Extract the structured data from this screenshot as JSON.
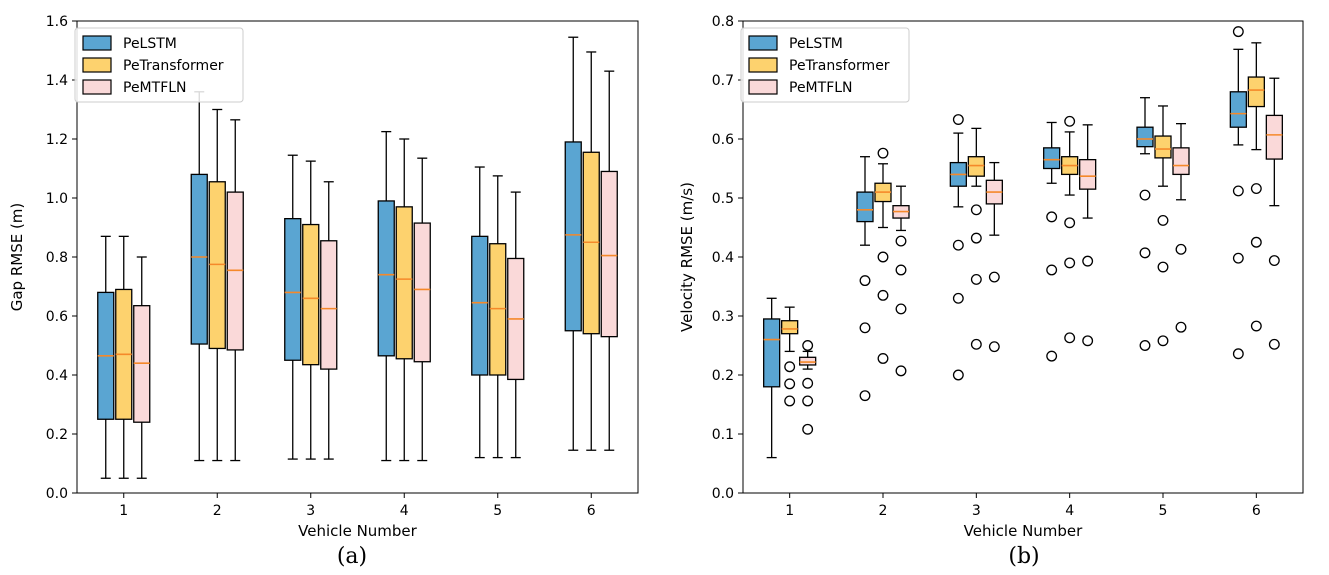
{
  "chart_data": [
    {
      "type": "box",
      "caption": "(a)",
      "xlabel": "Vehicle Number",
      "ylabel": "Gap RMSE (m)",
      "ylim": [
        0,
        1.6
      ],
      "yticks": [
        "0.0",
        "0.2",
        "0.4",
        "0.6",
        "0.8",
        "1.0",
        "1.2",
        "1.4",
        "1.6"
      ],
      "categories": [
        "1",
        "2",
        "3",
        "4",
        "5",
        "6"
      ],
      "legend": {
        "position": "top-left",
        "entries": [
          "PeLSTM",
          "PeTransformer",
          "PeMTFLN"
        ]
      },
      "series": [
        {
          "name": "PeLSTM",
          "color": "#5aa5d2",
          "boxes": [
            {
              "whislo": 0.05,
              "q1": 0.25,
              "med": 0.465,
              "q3": 0.68,
              "whishi": 0.87,
              "fliers": []
            },
            {
              "whislo": 0.11,
              "q1": 0.505,
              "med": 0.8,
              "q3": 1.08,
              "whishi": 1.36,
              "fliers": []
            },
            {
              "whislo": 0.115,
              "q1": 0.45,
              "med": 0.68,
              "q3": 0.93,
              "whishi": 1.145,
              "fliers": []
            },
            {
              "whislo": 0.11,
              "q1": 0.465,
              "med": 0.74,
              "q3": 0.99,
              "whishi": 1.225,
              "fliers": []
            },
            {
              "whislo": 0.12,
              "q1": 0.4,
              "med": 0.645,
              "q3": 0.87,
              "whishi": 1.105,
              "fliers": []
            },
            {
              "whislo": 0.145,
              "q1": 0.55,
              "med": 0.875,
              "q3": 1.19,
              "whishi": 1.545,
              "fliers": []
            }
          ]
        },
        {
          "name": "PeTransformer",
          "color": "#fdd26e",
          "boxes": [
            {
              "whislo": 0.05,
              "q1": 0.25,
              "med": 0.47,
              "q3": 0.69,
              "whishi": 0.87,
              "fliers": []
            },
            {
              "whislo": 0.11,
              "q1": 0.49,
              "med": 0.775,
              "q3": 1.055,
              "whishi": 1.3,
              "fliers": []
            },
            {
              "whislo": 0.115,
              "q1": 0.435,
              "med": 0.66,
              "q3": 0.91,
              "whishi": 1.125,
              "fliers": []
            },
            {
              "whislo": 0.11,
              "q1": 0.455,
              "med": 0.725,
              "q3": 0.97,
              "whishi": 1.2,
              "fliers": []
            },
            {
              "whislo": 0.12,
              "q1": 0.4,
              "med": 0.625,
              "q3": 0.845,
              "whishi": 1.075,
              "fliers": []
            },
            {
              "whislo": 0.145,
              "q1": 0.54,
              "med": 0.85,
              "q3": 1.155,
              "whishi": 1.495,
              "fliers": []
            }
          ]
        },
        {
          "name": "PeMTFLN",
          "color": "#fad9d9",
          "boxes": [
            {
              "whislo": 0.05,
              "q1": 0.24,
              "med": 0.44,
              "q3": 0.635,
              "whishi": 0.8,
              "fliers": []
            },
            {
              "whislo": 0.11,
              "q1": 0.485,
              "med": 0.755,
              "q3": 1.02,
              "whishi": 1.265,
              "fliers": []
            },
            {
              "whislo": 0.115,
              "q1": 0.42,
              "med": 0.625,
              "q3": 0.855,
              "whishi": 1.055,
              "fliers": []
            },
            {
              "whislo": 0.11,
              "q1": 0.445,
              "med": 0.69,
              "q3": 0.915,
              "whishi": 1.135,
              "fliers": []
            },
            {
              "whislo": 0.12,
              "q1": 0.385,
              "med": 0.59,
              "q3": 0.795,
              "whishi": 1.02,
              "fliers": []
            },
            {
              "whislo": 0.145,
              "q1": 0.53,
              "med": 0.805,
              "q3": 1.09,
              "whishi": 1.43,
              "fliers": []
            }
          ]
        }
      ]
    },
    {
      "type": "box",
      "caption": "(b)",
      "xlabel": "Vehicle Number",
      "ylabel": "Velocity RMSE (m/s)",
      "ylim": [
        0,
        0.8
      ],
      "yticks": [
        "0.0",
        "0.1",
        "0.2",
        "0.3",
        "0.4",
        "0.5",
        "0.6",
        "0.7",
        "0.8"
      ],
      "categories": [
        "1",
        "2",
        "3",
        "4",
        "5",
        "6"
      ],
      "legend": {
        "position": "top-left",
        "entries": [
          "PeLSTM",
          "PeTransformer",
          "PeMTFLN"
        ]
      },
      "series": [
        {
          "name": "PeLSTM",
          "color": "#5aa5d2",
          "boxes": [
            {
              "whislo": 0.06,
              "q1": 0.18,
              "med": 0.26,
              "q3": 0.295,
              "whishi": 0.33,
              "fliers": []
            },
            {
              "whislo": 0.42,
              "q1": 0.46,
              "med": 0.48,
              "q3": 0.51,
              "whishi": 0.57,
              "fliers": [
                0.36,
                0.28,
                0.165
              ]
            },
            {
              "whislo": 0.485,
              "q1": 0.52,
              "med": 0.54,
              "q3": 0.56,
              "whishi": 0.61,
              "fliers": [
                0.633,
                0.42,
                0.33,
                0.2
              ]
            },
            {
              "whislo": 0.525,
              "q1": 0.55,
              "med": 0.565,
              "q3": 0.585,
              "whishi": 0.628,
              "fliers": [
                0.468,
                0.378,
                0.232
              ]
            },
            {
              "whislo": 0.575,
              "q1": 0.587,
              "med": 0.6,
              "q3": 0.62,
              "whishi": 0.67,
              "fliers": [
                0.505,
                0.407,
                0.25
              ]
            },
            {
              "whislo": 0.59,
              "q1": 0.62,
              "med": 0.643,
              "q3": 0.68,
              "whishi": 0.752,
              "fliers": [
                0.782,
                0.512,
                0.398,
                0.236
              ]
            }
          ]
        },
        {
          "name": "PeTransformer",
          "color": "#fdd26e",
          "boxes": [
            {
              "whislo": 0.24,
              "q1": 0.27,
              "med": 0.278,
              "q3": 0.292,
              "whishi": 0.315,
              "fliers": [
                0.214,
                0.185,
                0.156
              ]
            },
            {
              "whislo": 0.45,
              "q1": 0.494,
              "med": 0.51,
              "q3": 0.525,
              "whishi": 0.558,
              "fliers": [
                0.576,
                0.4,
                0.335,
                0.228
              ]
            },
            {
              "whislo": 0.52,
              "q1": 0.537,
              "med": 0.555,
              "q3": 0.57,
              "whishi": 0.618,
              "fliers": [
                0.48,
                0.432,
                0.362,
                0.252
              ]
            },
            {
              "whislo": 0.505,
              "q1": 0.54,
              "med": 0.555,
              "q3": 0.57,
              "whishi": 0.612,
              "fliers": [
                0.63,
                0.458,
                0.39,
                0.263
              ]
            },
            {
              "whislo": 0.52,
              "q1": 0.568,
              "med": 0.583,
              "q3": 0.605,
              "whishi": 0.656,
              "fliers": [
                0.462,
                0.383,
                0.258
              ]
            },
            {
              "whislo": 0.582,
              "q1": 0.655,
              "med": 0.683,
              "q3": 0.705,
              "whishi": 0.763,
              "fliers": [
                0.516,
                0.425,
                0.283
              ]
            }
          ]
        },
        {
          "name": "PeMTFLN",
          "color": "#fad9d9",
          "boxes": [
            {
              "whislo": 0.21,
              "q1": 0.217,
              "med": 0.222,
              "q3": 0.23,
              "whishi": 0.24,
              "fliers": [
                0.25,
                0.186,
                0.156,
                0.108
              ]
            },
            {
              "whislo": 0.445,
              "q1": 0.466,
              "med": 0.477,
              "q3": 0.487,
              "whishi": 0.52,
              "fliers": [
                0.427,
                0.378,
                0.312,
                0.207
              ]
            },
            {
              "whislo": 0.437,
              "q1": 0.49,
              "med": 0.51,
              "q3": 0.53,
              "whishi": 0.56,
              "fliers": [
                0.366,
                0.248
              ]
            },
            {
              "whislo": 0.466,
              "q1": 0.515,
              "med": 0.537,
              "q3": 0.565,
              "whishi": 0.624,
              "fliers": [
                0.393,
                0.258
              ]
            },
            {
              "whislo": 0.497,
              "q1": 0.54,
              "med": 0.555,
              "q3": 0.585,
              "whishi": 0.626,
              "fliers": [
                0.413,
                0.281
              ]
            },
            {
              "whislo": 0.487,
              "q1": 0.566,
              "med": 0.607,
              "q3": 0.64,
              "whishi": 0.703,
              "fliers": [
                0.394,
                0.252
              ]
            }
          ]
        }
      ]
    }
  ]
}
